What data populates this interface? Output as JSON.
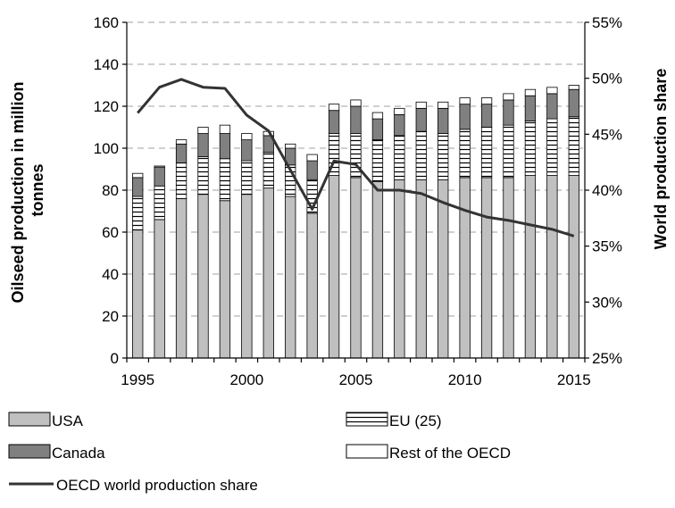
{
  "chart_data": {
    "type": "bar",
    "stacked": true,
    "x": [
      1995,
      1996,
      1997,
      1998,
      1999,
      2000,
      2001,
      2002,
      2003,
      2004,
      2005,
      2006,
      2007,
      2008,
      2009,
      2010,
      2011,
      2012,
      2013,
      2014,
      2015
    ],
    "x_ticks": [
      "1995",
      "2000",
      "2005",
      "2010",
      "2015"
    ],
    "ylabel": "Oilseed production in million tonnes",
    "y2label": "World production share",
    "ylim": [
      0,
      160
    ],
    "y_ticks": [
      "0",
      "20",
      "40",
      "60",
      "80",
      "100",
      "120",
      "140",
      "160"
    ],
    "y2lim": [
      25,
      55
    ],
    "y2_ticks": [
      "25%",
      "30%",
      "35%",
      "40%",
      "45%",
      "50%",
      "55%"
    ],
    "grid": true,
    "legend_position": "bottom",
    "series": [
      {
        "name": "USA",
        "kind": "bar",
        "color": "#c0c0c0",
        "values": [
          61,
          66,
          76,
          78,
          75,
          78,
          81,
          77,
          69,
          87,
          86,
          84,
          85,
          85,
          85,
          86,
          86,
          86,
          87,
          87,
          87
        ]
      },
      {
        "name": "EU (25)",
        "kind": "bar",
        "color": "#ffffff",
        "pattern": "horizontal-stripes",
        "values": [
          16,
          16,
          17,
          18,
          20,
          16,
          17,
          15,
          16,
          20,
          21,
          20,
          21,
          23,
          22,
          23,
          24,
          25,
          26,
          27,
          28
        ]
      },
      {
        "name": "Canada",
        "kind": "bar",
        "color": "#808080",
        "values": [
          9,
          9,
          9,
          11,
          12,
          10,
          8,
          8,
          9,
          11,
          13,
          10,
          10,
          11,
          12,
          12,
          11,
          12,
          12,
          12,
          13
        ]
      },
      {
        "name": "Rest of the OECD",
        "kind": "bar",
        "color": "#ffffff",
        "values": [
          2,
          0.5,
          2,
          3,
          4,
          3,
          2,
          2,
          3,
          3,
          3,
          3,
          3,
          3,
          3,
          3,
          3,
          3,
          3,
          3,
          2
        ]
      },
      {
        "name": "OECD world production share",
        "kind": "line",
        "axis": "right",
        "color": "#333333",
        "values": [
          46.9,
          49.2,
          49.9,
          49.2,
          49.1,
          46.7,
          45.3,
          41.8,
          38.3,
          42.6,
          42.3,
          40.0,
          40.0,
          39.7,
          38.9,
          38.2,
          37.6,
          37.3,
          36.9,
          36.5,
          35.9
        ]
      }
    ]
  }
}
